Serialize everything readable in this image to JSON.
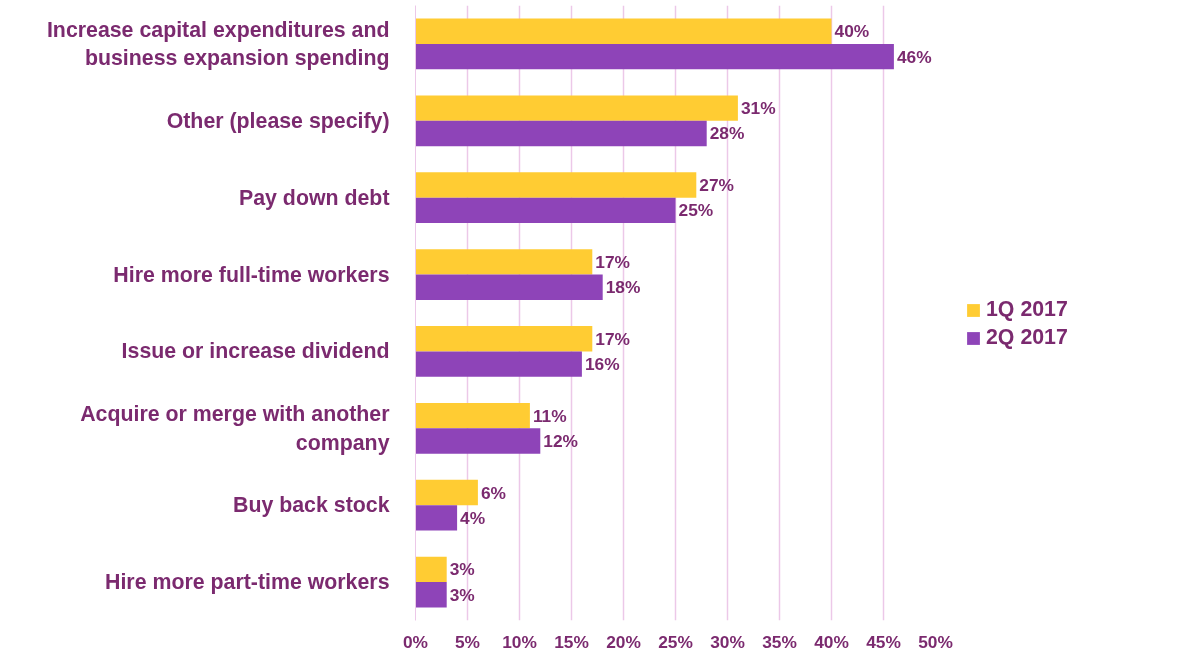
{
  "chart_data": {
    "type": "bar",
    "orientation": "horizontal",
    "categories": [
      "Increase capital expenditures and business expansion spending",
      "Other (please specify)",
      "Pay down debt",
      "Hire more full-time workers",
      "Issue or increase dividend",
      "Acquire or merge with another company",
      "Buy back stock",
      "Hire more part-time workers"
    ],
    "series": [
      {
        "name": "1Q 2017",
        "color": "#ffcc33",
        "values": [
          40,
          31,
          27,
          17,
          17,
          11,
          6,
          3
        ],
        "value_labels": [
          "40%",
          "31%",
          "27%",
          "17%",
          "17%",
          "11%",
          "6%",
          "3%"
        ]
      },
      {
        "name": "2Q 2017",
        "color": "#8e44b8",
        "values": [
          46,
          28,
          25,
          18,
          16,
          12,
          4,
          3
        ],
        "value_labels": [
          "46%",
          "28%",
          "25%",
          "18%",
          "16%",
          "12%",
          "4%",
          "3%"
        ]
      }
    ],
    "xlim": [
      0,
      50
    ],
    "xticks": [
      {
        "value": 0,
        "label": "0%"
      },
      {
        "value": 5,
        "label": "5%"
      },
      {
        "value": 10,
        "label": "10%"
      },
      {
        "value": 15,
        "label": "15%"
      },
      {
        "value": 20,
        "label": "20%"
      },
      {
        "value": 25,
        "label": "25%"
      },
      {
        "value": 30,
        "label": "30%"
      },
      {
        "value": 35,
        "label": "35%"
      },
      {
        "value": 40,
        "label": "40%"
      },
      {
        "value": 45,
        "label": "45%"
      },
      {
        "value": 50,
        "label": "50%"
      }
    ],
    "grid": "x",
    "legend": "right"
  }
}
